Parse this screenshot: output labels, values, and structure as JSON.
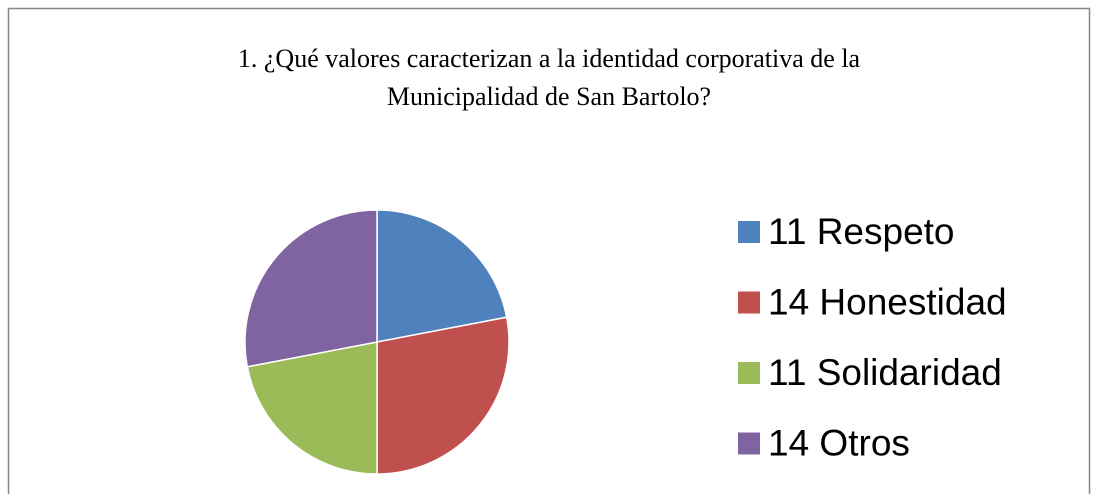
{
  "chart_data": {
    "type": "pie",
    "title": [
      "1. ¿Qué valores caracterizan a la identidad corporativa de la",
      "Municipalidad de San Bartolo?"
    ],
    "categories": [
      "11 Respeto",
      "14 Honestidad",
      "11 Solidaridad",
      "14 Otros"
    ],
    "values": [
      11,
      14,
      11,
      14
    ],
    "colors": [
      "#4f81bd",
      "#c0504d",
      "#9bbb59",
      "#8064a2"
    ],
    "legend": "right"
  }
}
